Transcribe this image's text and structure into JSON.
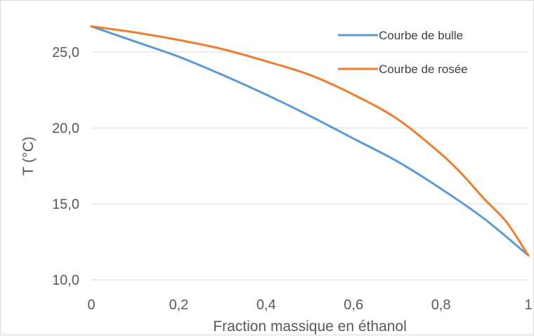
{
  "chart_data": {
    "type": "line",
    "title": "",
    "xlabel": "Fraction massique en éthanol",
    "ylabel": "T (°C)",
    "xlim": [
      0,
      1
    ],
    "ylim": [
      10,
      27
    ],
    "x_ticks": [
      "0",
      "0,2",
      "0,4",
      "0,6",
      "0,8",
      "1"
    ],
    "y_ticks": [
      "10,0",
      "15,0",
      "20,0",
      "25,0"
    ],
    "grid": "horizontal",
    "legend_position": "top-right",
    "series": [
      {
        "name": "Courbe de bulle",
        "color": "#5B9BD5",
        "x": [
          0,
          0.1,
          0.2,
          0.3,
          0.4,
          0.5,
          0.6,
          0.7,
          0.8,
          0.9,
          1.0
        ],
        "y": [
          26.7,
          25.7,
          24.7,
          23.5,
          22.2,
          20.8,
          19.3,
          17.8,
          16.0,
          14.0,
          11.6
        ]
      },
      {
        "name": "Courbe de rosée",
        "color": "#ED7D31",
        "x": [
          0,
          0.1,
          0.2,
          0.3,
          0.4,
          0.5,
          0.6,
          0.7,
          0.8,
          0.85,
          0.9,
          0.95,
          1.0
        ],
        "y": [
          26.7,
          26.3,
          25.8,
          25.2,
          24.4,
          23.5,
          22.2,
          20.6,
          18.3,
          16.9,
          15.3,
          13.8,
          11.6
        ]
      }
    ]
  }
}
